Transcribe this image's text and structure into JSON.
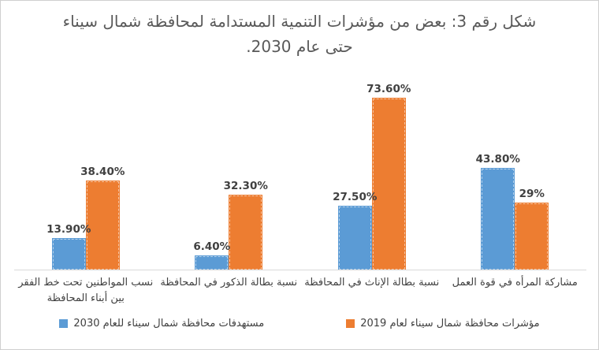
{
  "figure": {
    "title": "شكل رقم 3: بعض من مؤشرات التنمية المستدامة لمحافظة شمال سيناء حتى عام 2030.",
    "background": "#ffffff",
    "border_color": "#cfcfcf"
  },
  "chart_data": {
    "type": "bar",
    "direction": "rtl",
    "title": "شكل رقم 3: بعض من مؤشرات التنمية المستدامة لمحافظة شمال سيناء حتى عام 2030.",
    "categories": [
      "مشاركة المرأه في قوة العمل",
      "نسبة بطالة الإناث في المحافظة",
      "نسبة بطالة الذكور في المحافظة",
      "نسب المواطنين تحت خط الفقر بين أبناء المحافظة"
    ],
    "categories_note": "first category is the rightmost group (RTL chart)",
    "series": [
      {
        "name": "مؤشرات محافظة شمال سيناء لعام 2019",
        "color": "#ED7D31",
        "values": [
          29,
          73.6,
          32.3,
          38.4
        ],
        "labels": [
          "29%",
          "73.60%",
          "32.30%",
          "38.40%"
        ]
      },
      {
        "name": "مستهدفات محافظة شمال سيناء للعام 2030",
        "color": "#5B9BD5",
        "values": [
          43.8,
          27.5,
          6.4,
          13.9
        ],
        "labels": [
          "43.80%",
          "27.50%",
          "6.40%",
          "13.90%"
        ]
      }
    ],
    "series_note": "first series is the right bar of each pair (orange), second is the left bar (blue)",
    "xlabel": "",
    "ylabel": "",
    "ylim": [
      0,
      80
    ],
    "grid": false,
    "y_axis_ticks": false,
    "legend_position": "bottom",
    "axis_line_color": "#d9d9d9",
    "title_color": "#595959",
    "value_label_color": "#404040",
    "category_label_color": "#404040"
  }
}
